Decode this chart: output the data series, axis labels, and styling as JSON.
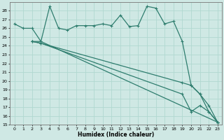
{
  "xlabel": "Humidex (Indice chaleur)",
  "bg_color": "#cfe8e4",
  "grid_color": "#b0d8d0",
  "line_color": "#2e7d6e",
  "line1_x": [
    0,
    1,
    2,
    3,
    4,
    5,
    6,
    7,
    8,
    9,
    10,
    11,
    12,
    13,
    14,
    15,
    16,
    17,
    18,
    19,
    20,
    21,
    22,
    23
  ],
  "line1_y": [
    26.5,
    26.0,
    26.0,
    24.5,
    28.5,
    26.0,
    25.8,
    26.3,
    26.3,
    26.3,
    26.5,
    26.3,
    27.5,
    26.2,
    26.3,
    28.5,
    28.3,
    26.5,
    26.8,
    24.5,
    19.5,
    18.5,
    16.5,
    15.3
  ],
  "line2_x": [
    2,
    3,
    23
  ],
  "line2_y": [
    24.5,
    24.5,
    15.3
  ],
  "line3_x": [
    2,
    3,
    19,
    20,
    21,
    22,
    23
  ],
  "line3_y": [
    24.5,
    24.3,
    19.8,
    19.5,
    18.5,
    17.2,
    15.3
  ],
  "line4_x": [
    2,
    3,
    19,
    20,
    21,
    22,
    23
  ],
  "line4_y": [
    24.5,
    24.3,
    18.5,
    16.5,
    17.2,
    16.5,
    15.3
  ],
  "ylim": [
    15,
    29
  ],
  "xlim": [
    -0.5,
    23.5
  ],
  "yticks": [
    15,
    16,
    17,
    18,
    19,
    20,
    21,
    22,
    23,
    24,
    25,
    26,
    27,
    28
  ],
  "xticks": [
    0,
    1,
    2,
    3,
    4,
    5,
    6,
    7,
    8,
    9,
    10,
    11,
    12,
    13,
    14,
    15,
    16,
    17,
    18,
    19,
    20,
    21,
    22,
    23
  ]
}
